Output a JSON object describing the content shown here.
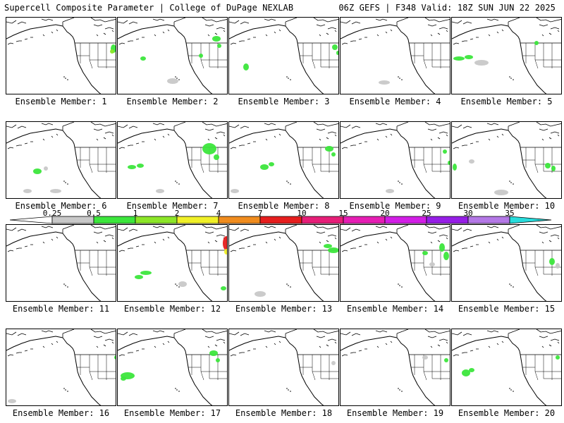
{
  "header": {
    "left": "Supercell Composite Parameter | College of DuPage NEXLAB",
    "right": "06Z GEFS | F348 Valid: 18Z SUN JUN 22 2025"
  },
  "map": {
    "panel_label_prefix": "Ensemble Member: ",
    "members": [
      {
        "label": "Ensemble Member: 1"
      },
      {
        "label": "Ensemble Member: 2"
      },
      {
        "label": "Ensemble Member: 3"
      },
      {
        "label": "Ensemble Member: 4"
      },
      {
        "label": "Ensemble Member: 5"
      },
      {
        "label": "Ensemble Member: 6"
      },
      {
        "label": "Ensemble Member: 7"
      },
      {
        "label": "Ensemble Member: 8"
      },
      {
        "label": "Ensemble Member: 9"
      },
      {
        "label": "Ensemble Member: 10"
      },
      {
        "label": "Ensemble Member: 11"
      },
      {
        "label": "Ensemble Member: 12"
      },
      {
        "label": "Ensemble Member: 13"
      },
      {
        "label": "Ensemble Member: 14"
      },
      {
        "label": "Ensemble Member: 15"
      },
      {
        "label": "Ensemble Member: 16"
      },
      {
        "label": "Ensemble Member: 17"
      },
      {
        "label": "Ensemble Member: 18"
      },
      {
        "label": "Ensemble Member: 19"
      },
      {
        "label": "Ensemble Member: 20"
      }
    ]
  },
  "legend": {
    "thresholds": [
      "0.25",
      "0.5",
      "1",
      "2",
      "4",
      "7",
      "10",
      "15",
      "20",
      "25",
      "30",
      "35"
    ],
    "colors": [
      "#c8c8c8",
      "#3ce63c",
      "#8ce628",
      "#f0f028",
      "#f08c1e",
      "#e61e1e",
      "#e61e78",
      "#e61eb4",
      "#d21ee6",
      "#961ee6",
      "#b478e6",
      "#28dcdc"
    ]
  }
}
